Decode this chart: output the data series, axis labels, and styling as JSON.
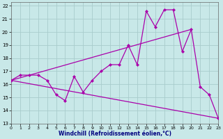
{
  "xlabel": "Windchill (Refroidissement éolien,°C)",
  "xlim": [
    0,
    23
  ],
  "ylim": [
    13,
    22.3
  ],
  "xticks": [
    0,
    1,
    2,
    3,
    4,
    5,
    6,
    7,
    8,
    9,
    10,
    11,
    12,
    13,
    14,
    15,
    16,
    17,
    18,
    19,
    20,
    21,
    22,
    23
  ],
  "yticks": [
    13,
    14,
    15,
    16,
    17,
    18,
    19,
    20,
    21,
    22
  ],
  "bg_color": "#c8e8e8",
  "line_color": "#aa00aa",
  "grid_color": "#a8cccc",
  "line1_x": [
    0,
    1,
    2,
    3,
    4,
    5,
    6,
    7,
    8,
    9,
    10,
    11,
    12,
    13,
    14,
    15,
    16,
    17,
    18,
    19,
    20,
    21,
    22,
    23
  ],
  "line1_y": [
    16.3,
    16.7,
    16.7,
    16.7,
    16.3,
    15.2,
    14.75,
    16.6,
    15.4,
    16.3,
    17.0,
    17.5,
    17.5,
    19.0,
    17.5,
    21.6,
    20.4,
    21.7,
    21.7,
    18.5,
    20.2,
    15.8,
    15.2,
    13.4
  ],
  "line2_x": [
    0,
    20
  ],
  "line2_y": [
    16.3,
    20.2
  ],
  "line3_x": [
    0,
    23
  ],
  "line3_y": [
    16.3,
    13.4
  ],
  "xlabel_color": "#000080",
  "xlabel_fontsize": 5.5,
  "tick_fontsize": 5.0
}
